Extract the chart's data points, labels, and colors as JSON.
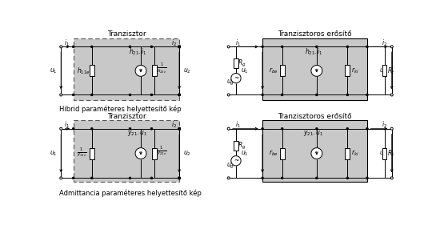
{
  "bg_color": "#ffffff",
  "gray_fill": "#c8c8c8",
  "dashed_box_color": "#555555",
  "line_color": "#000000",
  "title_top_left": "Tranzisztor",
  "title_top_right": "Tranzisztoros erősítő",
  "title_bot_left": "Tranzisztor",
  "title_bot_right": "Tranzisztoros erősítő",
  "label_bot": "Hibrid paraméteres helyettesítő kép",
  "label_bot2": "Admittancia paraméteres helyettesítő kép",
  "font_size_title": 6.5,
  "font_size_label": 6.0,
  "font_size_elem": 5.5
}
